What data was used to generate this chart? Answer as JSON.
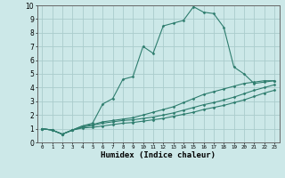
{
  "xlabel": "Humidex (Indice chaleur)",
  "ylabel": "",
  "bg_color": "#cce8e8",
  "grid_color": "#aacccc",
  "line_color": "#2e7d6e",
  "xlim": [
    -0.5,
    23.5
  ],
  "ylim": [
    0,
    10
  ],
  "xtick_labels": [
    "0",
    "1",
    "2",
    "3",
    "4",
    "5",
    "6",
    "7",
    "8",
    "9",
    "10",
    "11",
    "12",
    "13",
    "14",
    "15",
    "16",
    "17",
    "18",
    "19",
    "20",
    "21",
    "22",
    "23"
  ],
  "ytick_labels": [
    "0",
    "1",
    "2",
    "3",
    "4",
    "5",
    "6",
    "7",
    "8",
    "9",
    "10"
  ],
  "series1_x": [
    0,
    1,
    2,
    3,
    4,
    5,
    6,
    7,
    8,
    9,
    10,
    11,
    12,
    13,
    14,
    15,
    16,
    17,
    18,
    19,
    20,
    21,
    22,
    23
  ],
  "series1_y": [
    1.0,
    0.9,
    0.6,
    0.9,
    1.2,
    1.4,
    2.8,
    3.2,
    4.6,
    4.8,
    7.0,
    6.5,
    8.5,
    8.7,
    8.9,
    9.9,
    9.5,
    9.4,
    8.4,
    5.5,
    5.0,
    4.3,
    4.4,
    4.5
  ],
  "series2_x": [
    0,
    1,
    2,
    3,
    4,
    5,
    6,
    7,
    8,
    9,
    10,
    11,
    12,
    13,
    14,
    15,
    16,
    17,
    18,
    19,
    20,
    21,
    22,
    23
  ],
  "series2_y": [
    1.0,
    0.9,
    0.6,
    0.9,
    1.2,
    1.3,
    1.5,
    1.6,
    1.7,
    1.8,
    2.0,
    2.2,
    2.4,
    2.6,
    2.9,
    3.2,
    3.5,
    3.7,
    3.9,
    4.1,
    4.3,
    4.4,
    4.5,
    4.5
  ],
  "series3_x": [
    0,
    1,
    2,
    3,
    4,
    5,
    6,
    7,
    8,
    9,
    10,
    11,
    12,
    13,
    14,
    15,
    16,
    17,
    18,
    19,
    20,
    21,
    22,
    23
  ],
  "series3_y": [
    1.0,
    0.9,
    0.6,
    0.9,
    1.1,
    1.25,
    1.4,
    1.5,
    1.6,
    1.65,
    1.75,
    1.85,
    2.0,
    2.15,
    2.35,
    2.55,
    2.75,
    2.9,
    3.1,
    3.3,
    3.55,
    3.8,
    4.0,
    4.2
  ],
  "series4_x": [
    0,
    1,
    2,
    3,
    4,
    5,
    6,
    7,
    8,
    9,
    10,
    11,
    12,
    13,
    14,
    15,
    16,
    17,
    18,
    19,
    20,
    21,
    22,
    23
  ],
  "series4_y": [
    1.0,
    0.9,
    0.6,
    0.9,
    1.05,
    1.1,
    1.2,
    1.3,
    1.4,
    1.45,
    1.55,
    1.65,
    1.75,
    1.9,
    2.05,
    2.2,
    2.4,
    2.55,
    2.7,
    2.9,
    3.1,
    3.35,
    3.6,
    3.8
  ]
}
